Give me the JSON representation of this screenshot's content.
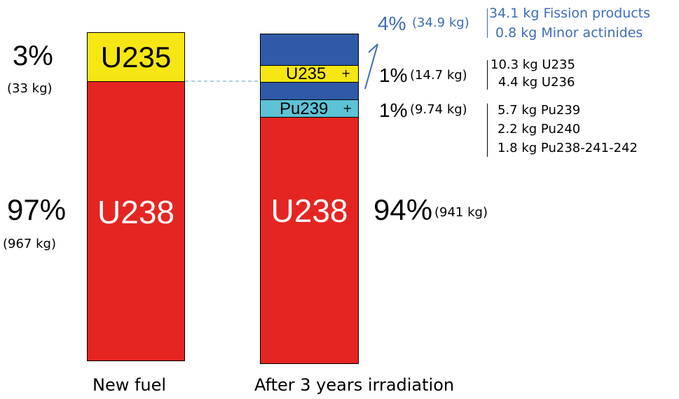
{
  "new_fuel": {
    "caption": "New fuel",
    "u235_label": "U235",
    "u238_label": "U238",
    "u235_percent": "3%",
    "u235_mass": "(33 kg)",
    "u238_percent": "97%",
    "u238_mass": "(967 kg)"
  },
  "irradiated": {
    "caption": "After 3 years irradiation",
    "u235_label": "U235",
    "pu239_label": "Pu239",
    "u238_label": "U238",
    "plus": "+",
    "u238_percent": "94%",
    "u238_mass": "(941 kg)"
  },
  "groups": {
    "fission": {
      "percent": "4%",
      "mass": "(34.9 kg)",
      "items": [
        "34.1 kg Fission products",
        "0.8 kg Minor actinides"
      ]
    },
    "uranium": {
      "percent": "1%",
      "mass": "(14.7 kg)",
      "items": [
        "10.3 kg U235",
        "4.4 kg U236"
      ]
    },
    "plutonium": {
      "percent": "1%",
      "mass": "(9.74 kg)",
      "items": [
        "5.7 kg Pu239",
        "2.2 kg Pu240",
        "1.8 kg Pu238-241-242"
      ]
    }
  },
  "colors": {
    "u235": "#f5e614",
    "u238": "#e52521",
    "fission": "#2f5aa8",
    "pu": "#5dc2d6",
    "blue_text": "#3d6db5"
  }
}
